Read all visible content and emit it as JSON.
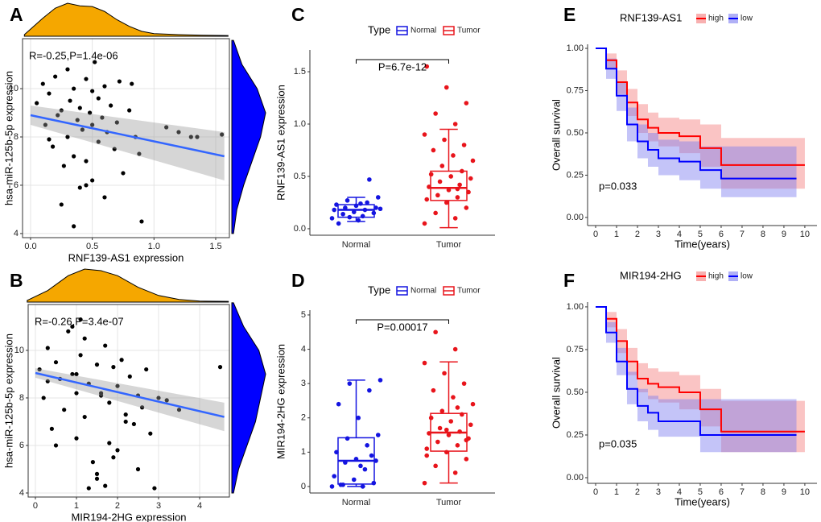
{
  "chart_data": [
    {
      "type": "scatter",
      "label": "A",
      "x_label": "RNF139-AS1 expression",
      "y_label": "hsa-miR-125b-5p expression",
      "annotation": "R=-0.25,P=1.4e-06",
      "x": [
        0.05,
        0.1,
        0.12,
        0.15,
        0.18,
        0.2,
        0.22,
        0.25,
        0.27,
        0.3,
        0.3,
        0.32,
        0.35,
        0.35,
        0.38,
        0.4,
        0.4,
        0.42,
        0.45,
        0.45,
        0.48,
        0.5,
        0.5,
        0.52,
        0.55,
        0.55,
        0.58,
        0.6,
        0.6,
        0.62,
        0.65,
        0.68,
        0.7,
        0.72,
        0.75,
        0.8,
        0.85,
        0.88,
        0.9,
        1.1,
        1.2,
        1.3,
        1.35,
        1.55,
        0.35,
        0.25,
        0.15,
        0.45,
        0.5,
        0.82
      ],
      "values": [
        9.4,
        10.2,
        8.5,
        9.8,
        7.6,
        10.5,
        8.9,
        9.1,
        6.8,
        10.8,
        8.0,
        9.5,
        7.2,
        10.0,
        8.7,
        9.2,
        5.9,
        8.3,
        10.4,
        7.0,
        9.0,
        8.5,
        6.2,
        11.1,
        9.6,
        7.8,
        8.8,
        5.5,
        10.1,
        8.2,
        9.3,
        7.5,
        8.6,
        10.3,
        6.5,
        9.1,
        8.0,
        7.3,
        4.5,
        8.4,
        8.2,
        8.0,
        8.0,
        8.1,
        4.3,
        5.2,
        7.9,
        6.0,
        9.9,
        10.2
      ],
      "color": "#000000",
      "fit": {
        "x": [
          0,
          1.57
        ],
        "values": [
          8.9,
          7.2
        ],
        "lower": [
          8.5,
          6.2
        ],
        "upper": [
          9.3,
          8.2
        ],
        "color": "#3366ff"
      },
      "x_density": {
        "x": [
          -0.05,
          0.1,
          0.2,
          0.3,
          0.4,
          0.5,
          0.6,
          0.7,
          0.8,
          0.9,
          1.0,
          1.2,
          1.4,
          1.6
        ],
        "values": [
          0.05,
          0.55,
          0.85,
          1.0,
          0.92,
          0.9,
          0.75,
          0.5,
          0.3,
          0.15,
          0.08,
          0.05,
          0.03,
          0.02
        ],
        "color": "#f5a700"
      },
      "y_density": {
        "y": [
          4,
          5,
          6,
          7,
          8,
          9,
          10,
          11,
          12
        ],
        "values": [
          0.05,
          0.15,
          0.35,
          0.6,
          0.85,
          1.0,
          0.75,
          0.3,
          0.05
        ],
        "color": "#0000ff"
      },
      "xlim": [
        -0.065,
        1.611
      ],
      "ylim": [
        3.83,
        12.07
      ],
      "xticks": [
        {
          "value": 0,
          "label": "0.0"
        },
        0.5,
        {
          "value": 1,
          "label": "1.0"
        },
        1.5
      ],
      "yticks": [
        4,
        6,
        8,
        10
      ],
      "grid": true
    },
    {
      "type": "scatter",
      "label": "B",
      "x_label": "MIR194-2HG expression",
      "y_label": "hsa-miR-125b-5p expression",
      "annotation": "R=-0.26,P=3.4e-07",
      "x": [
        0.1,
        0.2,
        0.3,
        0.4,
        0.5,
        0.6,
        0.7,
        0.8,
        0.9,
        1.0,
        1.0,
        1.1,
        1.2,
        1.2,
        1.3,
        1.4,
        1.5,
        1.5,
        1.6,
        1.7,
        1.8,
        1.8,
        1.9,
        2.0,
        2.0,
        2.1,
        2.2,
        2.3,
        2.4,
        2.5,
        2.6,
        2.7,
        2.8,
        3.0,
        3.2,
        3.5,
        4.5,
        1.3,
        1.5,
        1.7,
        1.9,
        0.9,
        1.1,
        2.5,
        0.5,
        2.9,
        1.6,
        1.0,
        0.3,
        2.2
      ],
      "values": [
        9.2,
        8.0,
        10.1,
        6.7,
        9.5,
        8.8,
        7.5,
        10.8,
        9.0,
        8.2,
        6.3,
        9.8,
        10.5,
        7.2,
        8.6,
        5.3,
        9.4,
        4.6,
        8.1,
        10.2,
        7.8,
        6.1,
        9.3,
        8.5,
        5.8,
        9.6,
        7.3,
        8.9,
        6.9,
        8.1,
        7.6,
        9.2,
        6.5,
        8.0,
        7.9,
        7.5,
        9.3,
        4.2,
        4.8,
        4.3,
        5.5,
        11.0,
        11.3,
        5.0,
        6.0,
        4.2,
        8.2,
        9.0,
        8.7,
        7.0
      ],
      "color": "#000000",
      "fit": {
        "x": [
          0,
          4.6
        ],
        "values": [
          9.05,
          7.2
        ],
        "lower": [
          8.85,
          6.6
        ],
        "upper": [
          9.25,
          7.8
        ],
        "color": "#3366ff"
      },
      "x_density": {
        "x": [
          -0.2,
          0.3,
          0.8,
          1.2,
          1.6,
          2.0,
          2.5,
          3.0,
          3.5,
          4.0,
          4.7
        ],
        "values": [
          0.05,
          0.35,
          0.8,
          1.0,
          0.95,
          0.8,
          0.45,
          0.2,
          0.08,
          0.03,
          0.02
        ],
        "color": "#f5a700"
      },
      "y_density": {
        "y": [
          4,
          5,
          6,
          7,
          8,
          9,
          10,
          11,
          12
        ],
        "values": [
          0.05,
          0.2,
          0.45,
          0.7,
          0.85,
          1.0,
          0.8,
          0.35,
          0.05
        ],
        "color": "#0000ff"
      },
      "xlim": [
        -0.176,
        4.725
      ],
      "ylim": [
        3.83,
        11.93
      ],
      "xticks": [
        0,
        1,
        2,
        3,
        4
      ],
      "yticks": [
        4,
        6,
        8,
        10
      ],
      "grid": true
    },
    {
      "type": "box",
      "label": "C",
      "y_label": "RNF139-AS1 expression",
      "legend_title": "Type",
      "p_label": "P=6.7e-12",
      "categories": [
        "Normal",
        "Tumor"
      ],
      "series": [
        {
          "name": "Normal",
          "color": "#1414e0",
          "whisker_low": 0.07,
          "q1": 0.11,
          "median": 0.18,
          "q3": 0.23,
          "whisker_high": 0.3,
          "points": [
            0.1,
            0.12,
            0.14,
            0.15,
            0.16,
            0.18,
            0.18,
            0.2,
            0.2,
            0.22,
            0.23,
            0.25,
            0.27,
            0.3,
            0.08,
            0.05,
            0.47,
            0.11,
            0.19,
            0.24
          ]
        },
        {
          "name": "Tumor",
          "color": "#e8141b",
          "whisker_low": 0.01,
          "q1": 0.27,
          "median": 0.39,
          "q3": 0.55,
          "whisker_high": 0.95,
          "points": [
            0.05,
            0.1,
            0.15,
            0.2,
            0.25,
            0.28,
            0.3,
            0.32,
            0.35,
            0.37,
            0.4,
            0.42,
            0.45,
            0.48,
            0.5,
            0.52,
            0.55,
            0.6,
            0.65,
            0.7,
            0.75,
            0.8,
            0.85,
            0.9,
            1.0,
            1.1,
            1.2,
            1.35,
            1.55,
            0.38
          ]
        }
      ],
      "ylim": [
        -0.062,
        1.708
      ],
      "yticks": [
        {
          "value": 0,
          "label": "0.0"
        },
        0.5,
        {
          "value": 1,
          "label": "1.0"
        },
        1.5
      ]
    },
    {
      "type": "box",
      "label": "D",
      "y_label": "MIR194-2HG expression",
      "legend_title": "Type",
      "p_label": "P=0.00017",
      "categories": [
        "Normal",
        "Tumor"
      ],
      "series": [
        {
          "name": "Normal",
          "color": "#1414e0",
          "whisker_low": 0,
          "q1": 0.07,
          "median": 0.75,
          "q3": 1.42,
          "whisker_high": 3.1,
          "points": [
            0,
            0,
            0.05,
            0.1,
            0.2,
            0.3,
            0.5,
            0.7,
            0.75,
            0.8,
            1.0,
            1.2,
            1.4,
            1.5,
            2.0,
            2.4,
            2.8,
            3.0,
            3.1,
            0.6,
            0.05,
            0.9
          ]
        },
        {
          "name": "Tumor",
          "color": "#e8141b",
          "whisker_low": 0.1,
          "q1": 1.03,
          "median": 1.57,
          "q3": 2.13,
          "whisker_high": 3.63,
          "points": [
            0.1,
            0.4,
            0.6,
            0.8,
            1.0,
            1.1,
            1.2,
            1.3,
            1.4,
            1.5,
            1.55,
            1.6,
            1.7,
            1.8,
            1.9,
            2.0,
            2.1,
            2.2,
            2.4,
            2.6,
            2.8,
            3.0,
            3.3,
            3.6,
            4.0,
            4.5,
            1.35,
            1.65,
            0.9,
            2.3
          ]
        }
      ],
      "ylim": [
        -0.19,
        5.14
      ],
      "yticks": [
        0,
        1,
        2,
        3,
        4,
        5
      ]
    },
    {
      "type": "line",
      "step": true,
      "label": "E",
      "legend_title": "RNF139-AS1",
      "x_label": "Time(years)",
      "y_label": "Overall survival",
      "annotation": "p=0.033",
      "series": [
        {
          "name": "high",
          "color": "#ff0000",
          "band_color": "#f47c7c",
          "x": [
            0,
            0.5,
            1,
            1.5,
            2,
            2.5,
            3,
            4,
            5,
            6,
            10
          ],
          "values": [
            1,
            0.93,
            0.8,
            0.68,
            0.58,
            0.53,
            0.5,
            0.48,
            0.41,
            0.31,
            0.31
          ],
          "lower": [
            1,
            0.88,
            0.73,
            0.6,
            0.5,
            0.45,
            0.42,
            0.38,
            0.3,
            0.17,
            0.15
          ],
          "upper": [
            1,
            0.97,
            0.87,
            0.76,
            0.67,
            0.62,
            0.59,
            0.58,
            0.55,
            0.47,
            0.47
          ]
        },
        {
          "name": "low",
          "color": "#0000ff",
          "band_color": "#7c7cf0",
          "x": [
            0,
            0.5,
            1,
            1.5,
            2,
            2.5,
            3,
            4,
            5,
            6,
            9.6
          ],
          "values": [
            1,
            0.88,
            0.72,
            0.55,
            0.45,
            0.4,
            0.35,
            0.33,
            0.28,
            0.23,
            0.23
          ],
          "lower": [
            1,
            0.82,
            0.63,
            0.45,
            0.35,
            0.3,
            0.25,
            0.22,
            0.17,
            0.12,
            0.12
          ],
          "upper": [
            1,
            0.94,
            0.8,
            0.65,
            0.55,
            0.5,
            0.46,
            0.45,
            0.42,
            0.42,
            0.42
          ]
        }
      ],
      "xlim": [
        -0.385,
        10.58
      ],
      "ylim": [
        -0.048,
        1.024
      ],
      "xticks": [
        0,
        1,
        2,
        3,
        4,
        5,
        6,
        7,
        8,
        9,
        10
      ],
      "yticks": [
        {
          "value": 0,
          "label": "0.00"
        },
        0.25,
        {
          "value": 0.5,
          "label": "0.50"
        },
        0.75,
        {
          "value": 1,
          "label": "1.00"
        }
      ]
    },
    {
      "type": "line",
      "step": true,
      "label": "F",
      "legend_title": "MIR194-2HG",
      "x_label": "Time(years)",
      "y_label": "Overall survival",
      "annotation": "p=0.035",
      "series": [
        {
          "name": "high",
          "color": "#ff0000",
          "band_color": "#f47c7c",
          "x": [
            0,
            0.5,
            1,
            1.5,
            2,
            2.5,
            3,
            4,
            5,
            6,
            10
          ],
          "values": [
            1,
            0.93,
            0.8,
            0.68,
            0.58,
            0.55,
            0.53,
            0.5,
            0.4,
            0.27,
            0.27
          ],
          "lower": [
            1,
            0.88,
            0.73,
            0.6,
            0.5,
            0.46,
            0.44,
            0.4,
            0.3,
            0.15,
            0.15
          ],
          "upper": [
            1,
            0.97,
            0.87,
            0.76,
            0.67,
            0.64,
            0.62,
            0.6,
            0.52,
            0.45,
            0.45
          ]
        },
        {
          "name": "low",
          "color": "#0000ff",
          "band_color": "#7c7cf0",
          "x": [
            0,
            0.5,
            1,
            1.5,
            2,
            2.5,
            3,
            4,
            5,
            6,
            9.6
          ],
          "values": [
            1,
            0.85,
            0.68,
            0.52,
            0.42,
            0.38,
            0.33,
            0.33,
            0.25,
            0.25,
            0.25
          ],
          "lower": [
            1,
            0.79,
            0.6,
            0.43,
            0.33,
            0.28,
            0.24,
            0.24,
            0.15,
            0.15,
            0.15
          ],
          "upper": [
            1,
            0.91,
            0.76,
            0.62,
            0.52,
            0.48,
            0.46,
            0.46,
            0.46,
            0.46,
            0.46
          ]
        }
      ],
      "xlim": [
        -0.385,
        10.58
      ],
      "ylim": [
        -0.033,
        1.028
      ],
      "xticks": [
        0,
        1,
        2,
        3,
        4,
        5,
        6,
        7,
        8,
        9,
        10
      ],
      "yticks": [
        {
          "value": 0,
          "label": "0.00"
        },
        0.25,
        {
          "value": 0.5,
          "label": "0.50"
        },
        0.75,
        {
          "value": 1,
          "label": "1.00"
        }
      ]
    }
  ]
}
